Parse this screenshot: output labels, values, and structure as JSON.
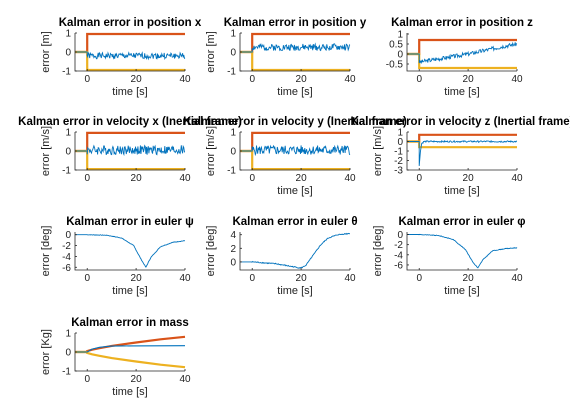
{
  "chart_data": [
    {
      "id": "pos-x",
      "type": "line",
      "title": "Kalman error in position x",
      "xlabel": "time [s]",
      "ylabel": "error [m]",
      "xlim": [
        -5,
        40
      ],
      "ylim": [
        -1,
        1
      ],
      "xticks": [
        0,
        20,
        40
      ],
      "yticks": [
        -1,
        0,
        1
      ],
      "series": [
        {
          "kind": "bound_hi",
          "color": "#d95319",
          "values": [
            [
              -5,
              0
            ],
            [
              0,
              0
            ],
            [
              0,
              0.95
            ],
            [
              40,
              0.95
            ]
          ]
        },
        {
          "kind": "bound_lo",
          "color": "#edb120",
          "values": [
            [
              -5,
              0
            ],
            [
              0,
              0
            ],
            [
              0,
              -0.95
            ],
            [
              40,
              -0.95
            ]
          ]
        },
        {
          "kind": "noisy",
          "color": "#0072bd",
          "mean": [
            [
              0,
              -0.2
            ],
            [
              40,
              -0.2
            ]
          ],
          "amp": 0.16,
          "seed": 1
        }
      ]
    },
    {
      "id": "pos-y",
      "type": "line",
      "title": "Kalman error in position y",
      "xlabel": "time [s]",
      "ylabel": "error [m]",
      "xlim": [
        -5,
        40
      ],
      "ylim": [
        -1,
        1
      ],
      "xticks": [
        0,
        20,
        40
      ],
      "yticks": [
        -1,
        0,
        1
      ],
      "series": [
        {
          "kind": "bound_hi",
          "color": "#d95319",
          "values": [
            [
              -5,
              0
            ],
            [
              0,
              0
            ],
            [
              0,
              0.95
            ],
            [
              40,
              0.95
            ]
          ]
        },
        {
          "kind": "bound_lo",
          "color": "#edb120",
          "values": [
            [
              -5,
              0
            ],
            [
              0,
              0
            ],
            [
              0,
              -0.95
            ],
            [
              40,
              -0.95
            ]
          ]
        },
        {
          "kind": "noisy",
          "color": "#0072bd",
          "mean": [
            [
              0,
              0.25
            ],
            [
              40,
              0.25
            ]
          ],
          "amp": 0.18,
          "seed": 2
        }
      ]
    },
    {
      "id": "pos-z",
      "type": "line",
      "title": "Kalman error in position z",
      "xlabel": "time [s]",
      "ylabel": "",
      "xlim": [
        -5,
        40
      ],
      "ylim": [
        -0.85,
        1.05
      ],
      "xticks": [
        0,
        20,
        40
      ],
      "yticks": [
        -0.5,
        0,
        0.5,
        1
      ],
      "series": [
        {
          "kind": "bound_hi",
          "color": "#d95319",
          "values": [
            [
              -5,
              0
            ],
            [
              0,
              0
            ],
            [
              0,
              0.7
            ],
            [
              40,
              0.7
            ]
          ]
        },
        {
          "kind": "bound_lo",
          "color": "#edb120",
          "values": [
            [
              -5,
              0
            ],
            [
              0,
              0
            ],
            [
              0,
              -0.7
            ],
            [
              40,
              -0.7
            ]
          ]
        },
        {
          "kind": "noisy",
          "color": "#0072bd",
          "mean": [
            [
              0,
              -0.4
            ],
            [
              5,
              -0.3
            ],
            [
              20,
              0
            ],
            [
              35,
              0.4
            ],
            [
              40,
              0.5
            ]
          ],
          "amp": 0.1,
          "seed": 3
        }
      ]
    },
    {
      "id": "vel-x",
      "type": "line",
      "title": "Kalman error in velocity x (Inertial frame)",
      "xlabel": "",
      "ylabel": "error [m/s]",
      "xlim": [
        -5,
        40
      ],
      "ylim": [
        -1,
        1
      ],
      "xticks": [
        0,
        20,
        40
      ],
      "yticks": [
        -1,
        0,
        1
      ],
      "series": [
        {
          "kind": "bound_hi",
          "color": "#d95319",
          "values": [
            [
              -5,
              0
            ],
            [
              0,
              0
            ],
            [
              0,
              0.95
            ],
            [
              40,
              0.95
            ]
          ]
        },
        {
          "kind": "bound_lo",
          "color": "#edb120",
          "values": [
            [
              -5,
              0
            ],
            [
              0,
              0
            ],
            [
              0,
              -0.95
            ],
            [
              40,
              -0.95
            ]
          ]
        },
        {
          "kind": "noisy",
          "color": "#0072bd",
          "mean": [
            [
              0,
              0.05
            ],
            [
              40,
              0.05
            ]
          ],
          "amp": 0.25,
          "seed": 4
        }
      ]
    },
    {
      "id": "vel-y",
      "type": "line",
      "title": "Kalman error in velocity y (Inertial frame)",
      "xlabel": "time [s]",
      "ylabel": "error [m/s]",
      "xlim": [
        -5,
        40
      ],
      "ylim": [
        -1,
        1
      ],
      "xticks": [
        0,
        20,
        40
      ],
      "yticks": [
        -1,
        0,
        1
      ],
      "series": [
        {
          "kind": "bound_hi",
          "color": "#d95319",
          "values": [
            [
              -5,
              0
            ],
            [
              0,
              0
            ],
            [
              0,
              0.95
            ],
            [
              40,
              0.95
            ]
          ]
        },
        {
          "kind": "bound_lo",
          "color": "#edb120",
          "values": [
            [
              -5,
              0
            ],
            [
              0,
              0
            ],
            [
              0,
              -0.95
            ],
            [
              40,
              -0.95
            ]
          ]
        },
        {
          "kind": "noisy",
          "color": "#0072bd",
          "mean": [
            [
              0,
              0.05
            ],
            [
              40,
              0.05
            ]
          ],
          "amp": 0.25,
          "seed": 5
        }
      ]
    },
    {
      "id": "vel-z",
      "type": "line",
      "title": "Kalman error in velocity z (Inertial frame)",
      "xlabel": "time [s]",
      "ylabel": "error [m/s]",
      "xlim": [
        -5,
        40
      ],
      "ylim": [
        -3,
        1
      ],
      "xticks": [
        0,
        20,
        40
      ],
      "yticks": [
        -3,
        -2,
        -1,
        0,
        1
      ],
      "series": [
        {
          "kind": "bound_hi",
          "color": "#d95319",
          "values": [
            [
              -5,
              0
            ],
            [
              0,
              0
            ],
            [
              0,
              0.7
            ],
            [
              40,
              0.7
            ]
          ]
        },
        {
          "kind": "bound_lo",
          "color": "#edb120",
          "values": [
            [
              -5,
              0
            ],
            [
              0,
              0
            ],
            [
              0,
              -0.6
            ],
            [
              40,
              -0.6
            ]
          ]
        },
        {
          "kind": "noisy",
          "color": "#0072bd",
          "mean": [
            [
              0,
              -2.6
            ],
            [
              0.5,
              -1
            ],
            [
              1,
              -0.2
            ],
            [
              2,
              0
            ],
            [
              40,
              0
            ]
          ],
          "amp": 0.08,
          "seed": 6
        }
      ]
    },
    {
      "id": "euler-psi",
      "type": "line",
      "title": "Kalman error in euler ψ",
      "xlabel": "time [s]",
      "ylabel": "error [deg]",
      "xlim": [
        -5,
        40
      ],
      "ylim": [
        -6.5,
        0.5
      ],
      "xticks": [
        0,
        20,
        40
      ],
      "yticks": [
        -6,
        -4,
        -2,
        0
      ],
      "series": [
        {
          "kind": "noisy",
          "color": "#0072bd",
          "mean": [
            [
              0,
              0
            ],
            [
              8,
              -0.1
            ],
            [
              14,
              -0.6
            ],
            [
              19,
              -2
            ],
            [
              22,
              -4.5
            ],
            [
              24,
              -6
            ],
            [
              26,
              -4.2
            ],
            [
              30,
              -2.2
            ],
            [
              35,
              -1.4
            ],
            [
              40,
              -1.1
            ]
          ],
          "amp": 0.05,
          "seed": 7
        }
      ]
    },
    {
      "id": "euler-theta",
      "type": "line",
      "title": "Kalman error in euler θ",
      "xlabel": "time [s]",
      "ylabel": "error [deg]",
      "xlim": [
        -5,
        40
      ],
      "ylim": [
        -1.2,
        4.4
      ],
      "xticks": [
        0,
        20,
        40
      ],
      "yticks": [
        0,
        2,
        4
      ],
      "series": [
        {
          "kind": "noisy",
          "color": "#0072bd",
          "mean": [
            [
              0,
              0
            ],
            [
              10,
              -0.3
            ],
            [
              18,
              -0.8
            ],
            [
              20,
              -0.9
            ],
            [
              22,
              -0.5
            ],
            [
              25,
              1
            ],
            [
              28,
              2.5
            ],
            [
              31,
              3.5
            ],
            [
              35,
              4
            ],
            [
              40,
              4.2
            ]
          ],
          "amp": 0.08,
          "seed": 8
        }
      ]
    },
    {
      "id": "euler-phi",
      "type": "line",
      "title": "Kalman error in euler φ",
      "xlabel": "time [s]",
      "ylabel": "error [deg]",
      "xlim": [
        -5,
        40
      ],
      "ylim": [
        -7,
        0.5
      ],
      "xticks": [
        0,
        20,
        40
      ],
      "yticks": [
        -6,
        -4,
        -2,
        0
      ],
      "series": [
        {
          "kind": "noisy",
          "color": "#0072bd",
          "mean": [
            [
              0,
              0
            ],
            [
              8,
              -0.2
            ],
            [
              14,
              -1
            ],
            [
              19,
              -3
            ],
            [
              22,
              -5.5
            ],
            [
              24,
              -6.6
            ],
            [
              26,
              -5
            ],
            [
              30,
              -3.2
            ],
            [
              35,
              -2.8
            ],
            [
              40,
              -2.6
            ]
          ],
          "amp": 0.06,
          "seed": 9
        }
      ]
    },
    {
      "id": "mass",
      "type": "line",
      "title": "Kalman error in mass",
      "xlabel": "time [s]",
      "ylabel": "error [Kg]",
      "xlim": [
        -5,
        40
      ],
      "ylim": [
        -1,
        1
      ],
      "xticks": [
        0,
        20,
        40
      ],
      "yticks": [
        -1,
        0,
        1
      ],
      "series": [
        {
          "kind": "bound_hi",
          "color": "#d95319",
          "values": [
            [
              -5,
              0
            ],
            [
              0,
              0
            ],
            [
              0,
              0.05
            ],
            [
              2,
              0.12
            ],
            [
              5,
              0.2
            ],
            [
              10,
              0.32
            ],
            [
              20,
              0.5
            ],
            [
              30,
              0.67
            ],
            [
              40,
              0.8
            ]
          ]
        },
        {
          "kind": "bound_lo",
          "color": "#edb120",
          "values": [
            [
              -5,
              0
            ],
            [
              0,
              0
            ],
            [
              0,
              -0.05
            ],
            [
              2,
              -0.12
            ],
            [
              5,
              -0.2
            ],
            [
              10,
              -0.32
            ],
            [
              20,
              -0.5
            ],
            [
              30,
              -0.67
            ],
            [
              40,
              -0.8
            ]
          ]
        },
        {
          "kind": "line",
          "color": "#0072bd",
          "values": [
            [
              -5,
              0
            ],
            [
              0,
              0
            ],
            [
              2,
              0.15
            ],
            [
              5,
              0.25
            ],
            [
              10,
              0.31
            ],
            [
              15,
              0.32
            ],
            [
              40,
              0.33
            ]
          ]
        }
      ]
    }
  ]
}
